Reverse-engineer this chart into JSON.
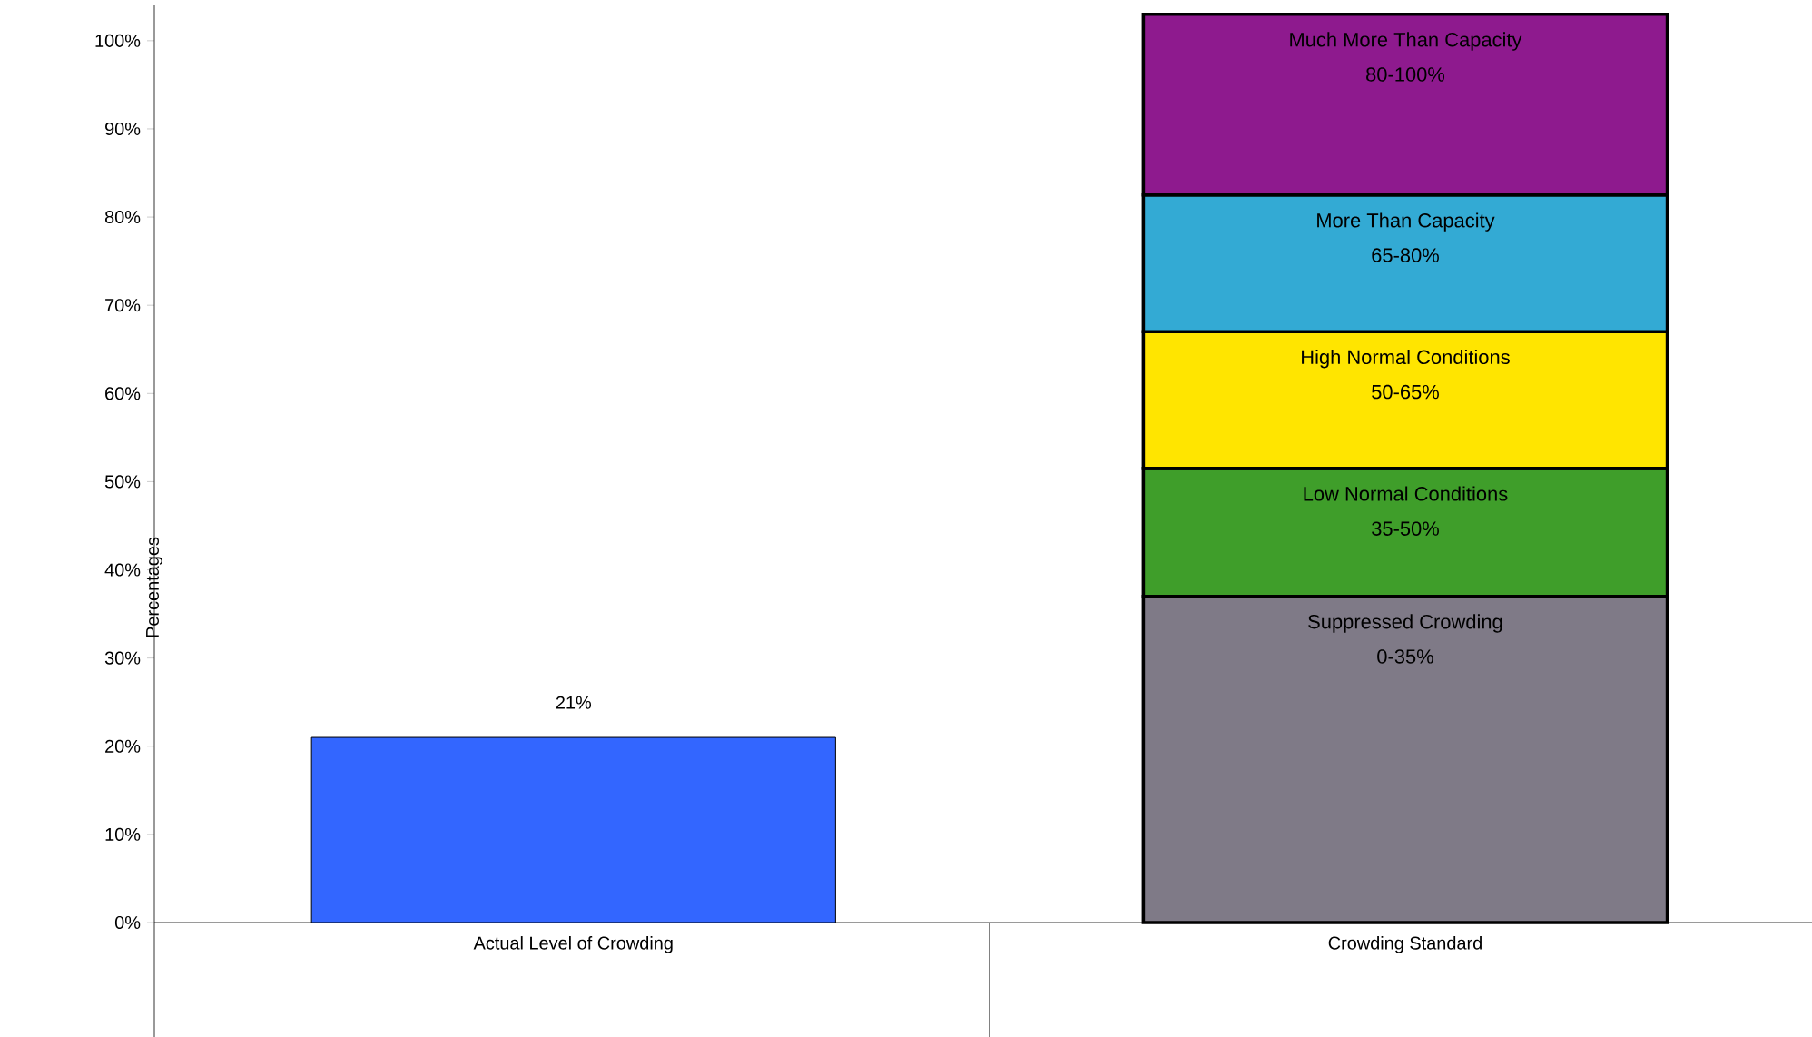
{
  "chart_data": {
    "type": "bar",
    "stacked": true,
    "ylabel": "Percentages",
    "categories": [
      "Actual Level of Crowding",
      "Crowding Standard"
    ],
    "series": [
      {
        "color": "#3366ff",
        "values": [
          21,
          null
        ],
        "value_labels": [
          "21%",
          null
        ]
      },
      {
        "name": "Suppressed Crowding",
        "color": "#7f7a87",
        "values": [
          null,
          37
        ]
      },
      {
        "name": "Low Normal Conditions",
        "color": "#3f9e2a",
        "values": [
          null,
          14.5
        ]
      },
      {
        "name": "High Normal Conditions",
        "color": "#ffe500",
        "values": [
          null,
          15.5
        ]
      },
      {
        "name": "More Than Capacity",
        "color": "#33aad4",
        "values": [
          null,
          15.5
        ]
      },
      {
        "name": "Much More Than Capacity",
        "color": "#8e1a8e",
        "values": [
          null,
          20.5
        ]
      }
    ],
    "annotations": [
      "0-35%",
      "35-50%",
      "50-65%",
      "65-80%",
      "80-100%"
    ],
    "ylim": [
      0,
      104
    ],
    "yticks": [
      {
        "value": 0,
        "label": "0%"
      },
      {
        "value": 10,
        "label": "10%"
      },
      {
        "value": 20,
        "label": "20%"
      },
      {
        "value": 30,
        "label": "30%"
      },
      {
        "value": 40,
        "label": "40%"
      },
      {
        "value": 50,
        "label": "50%"
      },
      {
        "value": 60,
        "label": "60%"
      },
      {
        "value": 70,
        "label": "70%"
      },
      {
        "value": 80,
        "label": "80%"
      },
      {
        "value": 90,
        "label": "90%"
      },
      {
        "value": 100,
        "label": "100%"
      }
    ],
    "grid": false
  }
}
